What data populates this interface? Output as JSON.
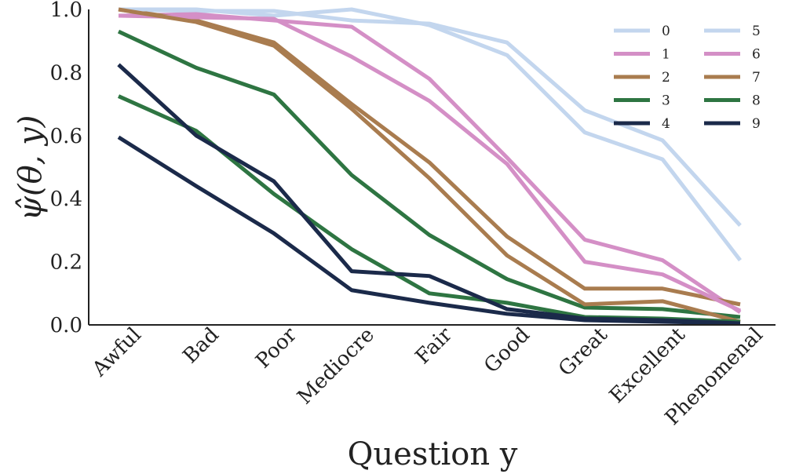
{
  "chart_data": {
    "type": "line",
    "xlabel": "Question y",
    "ylabel": "ψ̂(θ, y)",
    "categories": [
      "Awful",
      "Bad",
      "Poor",
      "Mediocre",
      "Fair",
      "Good",
      "Great",
      "Excellent",
      "Phenomenal"
    ],
    "ylim": [
      0,
      1.0
    ],
    "yticks": [
      "0.0",
      "0.2",
      "0.4",
      "0.6",
      "0.8",
      "1.0"
    ],
    "grid": false,
    "legend_placement": "top-right",
    "series": [
      {
        "name": "0",
        "color": "#c3d6ee",
        "values": [
          1.0,
          0.995,
          0.995,
          0.965,
          0.955,
          0.895,
          0.68,
          0.585,
          0.315
        ]
      },
      {
        "name": "1",
        "color": "#d48fc6",
        "values": [
          0.98,
          0.985,
          0.965,
          0.945,
          0.78,
          0.53,
          0.27,
          0.205,
          0.04
        ]
      },
      {
        "name": "2",
        "color": "#a97c4f",
        "values": [
          1.0,
          0.965,
          0.895,
          0.7,
          0.515,
          0.28,
          0.115,
          0.115,
          0.065
        ]
      },
      {
        "name": "3",
        "color": "#2e7542",
        "values": [
          0.93,
          0.815,
          0.73,
          0.475,
          0.285,
          0.145,
          0.055,
          0.05,
          0.025
        ]
      },
      {
        "name": "4",
        "color": "#1b2a4a",
        "values": [
          0.595,
          0.44,
          0.29,
          0.11,
          0.07,
          0.035,
          0.015,
          0.01,
          0.005
        ]
      },
      {
        "name": "5",
        "color": "#c3d6ee",
        "values": [
          1.0,
          1.0,
          0.98,
          1.0,
          0.95,
          0.855,
          0.61,
          0.525,
          0.205
        ]
      },
      {
        "name": "6",
        "color": "#d48fc6",
        "values": [
          0.98,
          0.975,
          0.97,
          0.85,
          0.71,
          0.51,
          0.2,
          0.16,
          0.045
        ]
      },
      {
        "name": "7",
        "color": "#a97c4f",
        "values": [
          1.0,
          0.96,
          0.885,
          0.685,
          0.465,
          0.22,
          0.065,
          0.075,
          0.01
        ]
      },
      {
        "name": "8",
        "color": "#2e7542",
        "values": [
          0.725,
          0.615,
          0.415,
          0.24,
          0.1,
          0.07,
          0.025,
          0.02,
          0.01
        ]
      },
      {
        "name": "9",
        "color": "#1b2a4a",
        "values": [
          0.825,
          0.6,
          0.455,
          0.17,
          0.155,
          0.05,
          0.02,
          0.015,
          0.005
        ]
      }
    ]
  }
}
